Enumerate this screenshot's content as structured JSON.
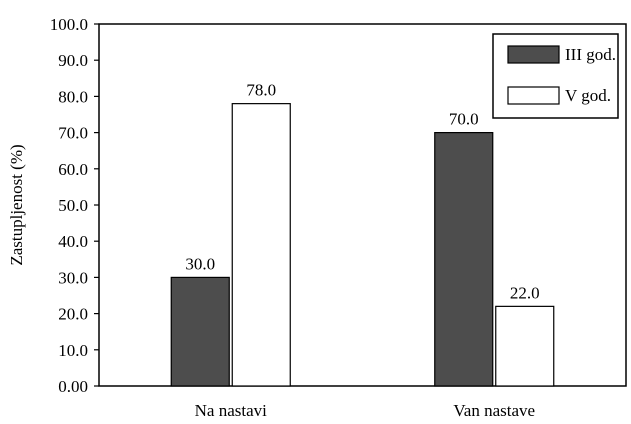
{
  "chart_data": {
    "type": "bar",
    "categories": [
      "Na nastavi",
      "Van nastave"
    ],
    "series": [
      {
        "name": "III god.",
        "values": [
          30.0,
          70.0
        ],
        "labels": [
          "30.0",
          "70.0"
        ],
        "color": "#4d4d4d"
      },
      {
        "name": "V god.",
        "values": [
          78.0,
          22.0
        ],
        "labels": [
          "78.0",
          "22.0"
        ],
        "color": "#ffffff"
      }
    ],
    "title": "",
    "xlabel": "",
    "ylabel": "Zastupljenost (%)",
    "ylim": [
      0,
      100
    ],
    "yticks": [
      "0.00",
      "10.0",
      "20.0",
      "30.0",
      "40.0",
      "50.0",
      "60.0",
      "70.0",
      "80.0",
      "90.0",
      "100.0"
    ],
    "grid": false,
    "legend_position": "top-right"
  }
}
